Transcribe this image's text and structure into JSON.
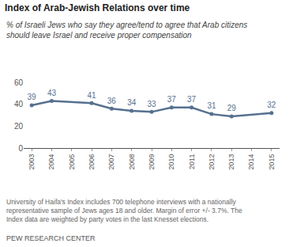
{
  "chart_data": {
    "type": "line",
    "title": "Index of Arab-Jewish Relations over time",
    "subtitle": [
      "% of Israeli Jews who say they agree/tend to agree that Arab citizens",
      "should leave Israel and receive proper compensation"
    ],
    "x": [
      2003,
      2004,
      2006,
      2007,
      2008,
      2009,
      2010,
      2011,
      2012,
      2013,
      2015
    ],
    "values": [
      39,
      43,
      41,
      36,
      34,
      33,
      37,
      37,
      31,
      29,
      32
    ],
    "xlim": [
      2002.6,
      2015.4
    ],
    "xticks": [
      2003,
      2004,
      2005,
      2006,
      2007,
      2008,
      2009,
      2010,
      2011,
      2012,
      2013,
      2014,
      2015
    ],
    "ylim": [
      0,
      60
    ],
    "yticks": [
      0,
      20,
      40,
      60
    ],
    "grid": false,
    "data_labels": true,
    "color": "#56718f",
    "marker": "circle",
    "annotations": [
      [
        "University of Haifa's Index includes 700 telephone interviews with a nationally",
        "representative sample of Jews ages 18 and older. Margin of error +/- 3.7%. The",
        "Index data are weighted by party votes in the last Knesset elections."
      ],
      [
        "PEW RESEARCH CENTER"
      ]
    ]
  }
}
